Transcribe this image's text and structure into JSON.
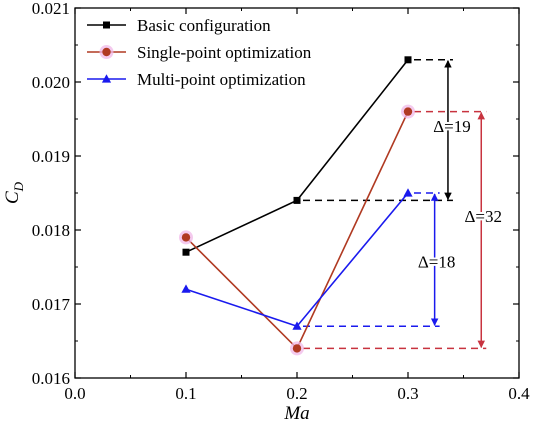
{
  "chart_data": {
    "type": "line",
    "xlabel": "Ma",
    "ylabel_main": "C",
    "ylabel_sub": "D",
    "xlim": [
      0.0,
      0.4
    ],
    "ylim": [
      0.016,
      0.021
    ],
    "xticks": [
      0.0,
      0.1,
      0.2,
      0.3,
      0.4
    ],
    "xtick_labels": [
      "0.0",
      "0.1",
      "0.2",
      "0.3",
      "0.4"
    ],
    "yticks": [
      0.016,
      0.017,
      0.018,
      0.019,
      0.02,
      0.021
    ],
    "ytick_labels": [
      "0.016",
      "0.017",
      "0.018",
      "0.019",
      "0.020",
      "0.021"
    ],
    "grid": false,
    "legend_position": "top-left",
    "series": [
      {
        "name": "Basic configuration",
        "color": "#000000",
        "marker": "square",
        "x": [
          0.1,
          0.2,
          0.3
        ],
        "y": [
          0.0177,
          0.0184,
          0.0203
        ]
      },
      {
        "name": "Single-point optimization",
        "color": "#b03a22",
        "marker": "circle",
        "x": [
          0.1,
          0.2,
          0.3
        ],
        "y": [
          0.0179,
          0.0164,
          0.0196
        ]
      },
      {
        "name": "Multi-point optimization",
        "color": "#1a1aee",
        "marker": "triangle",
        "x": [
          0.1,
          0.2,
          0.3
        ],
        "y": [
          0.0172,
          0.0167,
          0.0185
        ]
      }
    ],
    "annotations": [
      {
        "label": "Δ=19",
        "color": "#000000",
        "y_top": 0.0203,
        "y_bottom": 0.0184,
        "x": 0.336
      },
      {
        "label": "Δ=18",
        "color": "#1a1aee",
        "y_top": 0.0185,
        "y_bottom": 0.0167,
        "x": 0.324
      },
      {
        "label": "Δ=32",
        "color": "#c8333f",
        "y_top": 0.0196,
        "y_bottom": 0.0164,
        "x": 0.366
      }
    ]
  }
}
